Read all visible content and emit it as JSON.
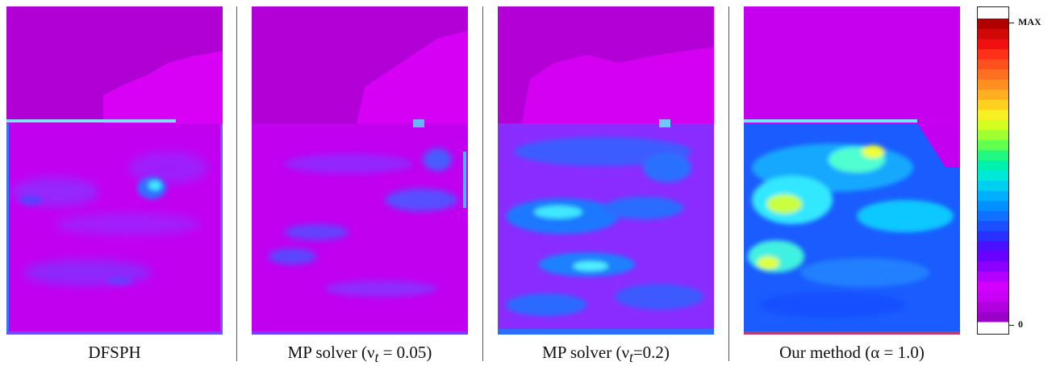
{
  "panels": [
    {
      "id": "dfsph",
      "caption": "DFSPH"
    },
    {
      "id": "mp005",
      "caption_prefix": "MP solver (",
      "caption_symbol": "ν",
      "caption_sub": "t",
      "caption_suffix": " = 0.05)"
    },
    {
      "id": "mp02",
      "caption_prefix": "MP solver (",
      "caption_symbol": "ν",
      "caption_sub": "t",
      "caption_suffix": "=0.2)"
    },
    {
      "id": "ours",
      "caption": "Our method (α = 1.0)"
    }
  ],
  "colorbar": {
    "max_label": "MAX",
    "min_label": "0",
    "colors": [
      "#9b00c8",
      "#b000e0",
      "#c800f5",
      "#d400ff",
      "#b400ff",
      "#8c00ff",
      "#6a00ff",
      "#4a10ff",
      "#2a30ff",
      "#1a50ff",
      "#1070ff",
      "#0090ff",
      "#00b0ff",
      "#00d0f0",
      "#00e8d8",
      "#00f0b0",
      "#20f880",
      "#60ff50",
      "#a0ff30",
      "#d0ff20",
      "#f8f020",
      "#ffd020",
      "#ffb020",
      "#ff9020",
      "#ff7020",
      "#ff5020",
      "#ff3018",
      "#f01010",
      "#d00808",
      "#b00000"
    ],
    "colors_note": "gradient from purple (0) to dark red (MAX)"
  },
  "scene_colors": {
    "air": "#b300d6",
    "air_light": "#d400f2",
    "fluid_base": "#c000ef",
    "low_vorticity": "#7a28ff",
    "mid_vorticity": "#1a6cff",
    "high_vorticity": "#30e0ff",
    "peak": "#d8ff40"
  }
}
